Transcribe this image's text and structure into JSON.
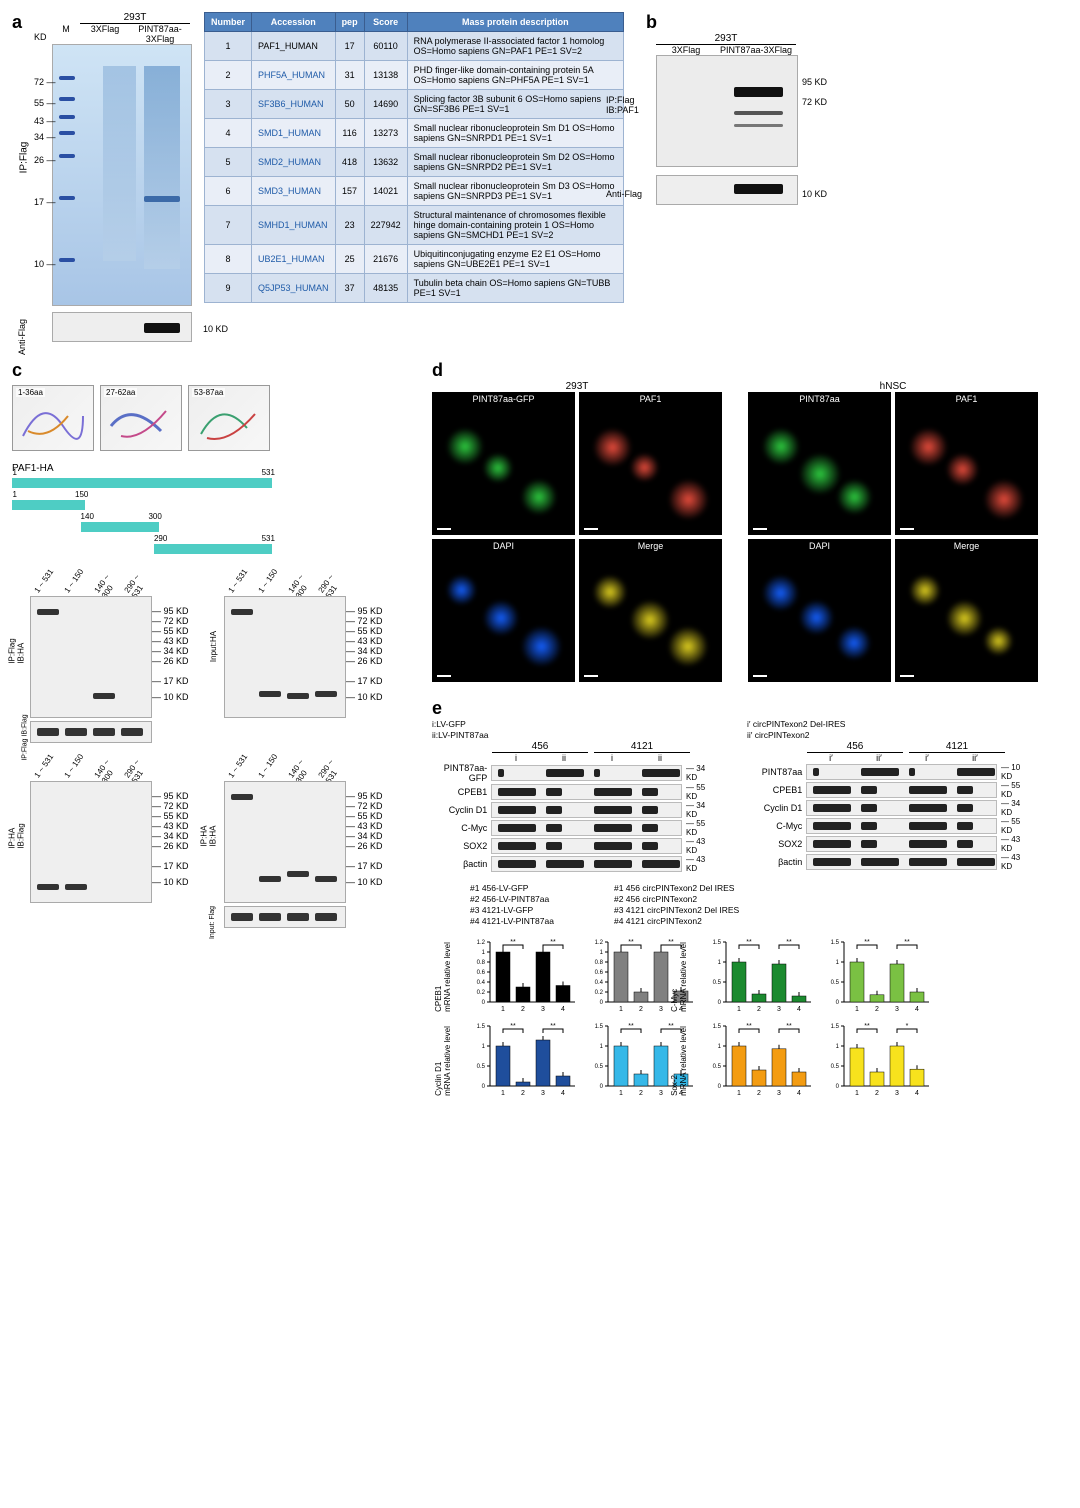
{
  "panel_labels": {
    "a": "a",
    "b": "b",
    "c": "c",
    "d": "d",
    "e": "e"
  },
  "a": {
    "cell_line": "293T",
    "lane_m": "M",
    "lane1": "3XFlag",
    "lane2": "PINT87aa-3XFlag",
    "ip": "IP:Flag",
    "antiflag": "Anti-Flag",
    "kd": "KD",
    "mw": [
      "72",
      "55",
      "43",
      "34",
      "26",
      "17",
      "10"
    ],
    "antiflag_mw": "10 KD",
    "table": {
      "headers": [
        "Number",
        "Accession",
        "pep",
        "Score",
        "Mass protein description"
      ],
      "rows": [
        {
          "n": "1",
          "acc": "PAF1_HUMAN",
          "acc_link": false,
          "pep": "17",
          "score": "60110",
          "desc": "RNA polymerase II-associated factor 1 homolog OS=Homo sapiens GN=PAF1 PE=1 SV=2"
        },
        {
          "n": "2",
          "acc": "PHF5A_HUMAN",
          "acc_link": true,
          "pep": "31",
          "score": "13138",
          "desc": "PHD finger-like domain-containing protein 5A OS=Homo sapiens GN=PHF5A PE=1 SV=1"
        },
        {
          "n": "3",
          "acc": "SF3B6_HUMAN",
          "acc_link": true,
          "pep": "50",
          "score": "14690",
          "desc": "Splicing factor 3B subunit 6 OS=Homo sapiens GN=SF3B6 PE=1 SV=1"
        },
        {
          "n": "4",
          "acc": "SMD1_HUMAN",
          "acc_link": true,
          "pep": "116",
          "score": "13273",
          "desc": "Small nuclear ribonucleoprotein Sm D1 OS=Homo sapiens GN=SNRPD1 PE=1 SV=1"
        },
        {
          "n": "5",
          "acc": "SMD2_HUMAN",
          "acc_link": true,
          "pep": "418",
          "score": "13632",
          "desc": "Small nuclear ribonucleoprotein Sm D2 OS=Homo sapiens GN=SNRPD2 PE=1 SV=1"
        },
        {
          "n": "6",
          "acc": "SMD3_HUMAN",
          "acc_link": true,
          "pep": "157",
          "score": "14021",
          "desc": "Small nuclear ribonucleoprotein Sm D3 OS=Homo sapiens GN=SNRPD3 PE=1 SV=1"
        },
        {
          "n": "7",
          "acc": "SMHD1_HUMAN",
          "acc_link": true,
          "pep": "23",
          "score": "227942",
          "desc": "Structural maintenance of chromosomes flexible hinge domain-containing protein 1 OS=Homo sapiens GN=SMCHD1 PE=1 SV=2"
        },
        {
          "n": "8",
          "acc": "UB2E1_HUMAN",
          "acc_link": true,
          "pep": "25",
          "score": "21676",
          "desc": "Ubiquitinconjugating enzyme E2 E1 OS=Homo sapiens GN=UBE2E1 PE=1 SV=1"
        },
        {
          "n": "9",
          "acc": "Q5JP53_HUMAN",
          "acc_link": true,
          "pep": "37",
          "score": "48135",
          "desc": "Tubulin beta chain OS=Homo sapiens GN=TUBB PE=1 SV=1"
        }
      ]
    }
  },
  "b": {
    "cell_line": "293T",
    "lane1": "3XFlag",
    "lane2": "PINT87aa-3XFlag",
    "ip": "IP:Flag",
    "ib": "IB:PAF1",
    "antiflag": "Anti-Flag",
    "mw_top": [
      "95 KD",
      "72 KD"
    ],
    "mw_bottom": "10 KD"
  },
  "c": {
    "struct_labels": [
      "1-36aa",
      "27-62aa",
      "53-87aa"
    ],
    "paf_label": "PAF1-HA",
    "domains": [
      {
        "start": 1,
        "end": 531,
        "label_l": "1",
        "label_r": "531"
      },
      {
        "start": 1,
        "end": 150,
        "label_l": "1",
        "label_r": "150"
      },
      {
        "start": 140,
        "end": 300,
        "label_l": "140",
        "label_r": "300"
      },
      {
        "start": 290,
        "end": 531,
        "label_l": "290",
        "label_r": "531"
      }
    ],
    "lanes": [
      "1 ~ 531",
      "1 ~ 150",
      "140 ~ 300",
      "290 ~ 531"
    ],
    "mw": [
      "95 KD",
      "72 KD",
      "55 KD",
      "43 KD",
      "34 KD",
      "26 KD",
      "17 KD",
      "10 KD"
    ],
    "panels": [
      {
        "left": "IP:Flag",
        "left2": "IB:HA"
      },
      {
        "left": "Input:HA"
      },
      {
        "left": "IP:Flag",
        "left2": "IB:Flag"
      },
      {
        "left": "IP:HA",
        "left2": "IB:Flag"
      },
      {
        "left": "IP:HA",
        "left2": "IB:HA"
      },
      {
        "left": "Input: Flag"
      }
    ]
  },
  "d": {
    "group1": "293T",
    "group2": "hNSC",
    "labels_293T": [
      "PINT87aa-GFP",
      "PAF1",
      "DAPI",
      "Merge"
    ],
    "labels_hNSC": [
      "PINT87aa",
      "PAF1",
      "DAPI",
      "Merge"
    ],
    "colors": {
      "green": "#2ecc40",
      "red": "#e74c3c",
      "blue": "#1560ff",
      "merge": "#e0d020"
    }
  },
  "e": {
    "left_key_i": "i:LV-GFP",
    "left_key_ii": "ii:LV-PINT87aa",
    "right_key_i": "i′ circPINTexon2 Del-IRES",
    "right_key_ii": "ii′ circPINTexon2",
    "cell1": "456",
    "cell2": "4121",
    "lanes_left": [
      "i",
      "ii",
      "i",
      "ii"
    ],
    "lanes_right": [
      "i′",
      "ii′",
      "i′",
      "ii′"
    ],
    "proteins_left": [
      {
        "name": "PINT87aa-GFP",
        "mw": "34 KD"
      },
      {
        "name": "CPEB1",
        "mw": "55 KD"
      },
      {
        "name": "Cyclin D1",
        "mw": "34 KD"
      },
      {
        "name": "C-Myc",
        "mw": "55 KD"
      },
      {
        "name": "SOX2",
        "mw": "43 KD"
      },
      {
        "name": "βactin",
        "mw": "43 KD"
      }
    ],
    "proteins_right": [
      {
        "name": "PINT87aa",
        "mw": "10 KD"
      },
      {
        "name": "CPEB1",
        "mw": "55 KD"
      },
      {
        "name": "Cyclin D1",
        "mw": "34 KD"
      },
      {
        "name": "C-Myc",
        "mw": "55 KD"
      },
      {
        "name": "SOX2",
        "mw": "43 KD"
      },
      {
        "name": "βactin",
        "mw": "43 KD"
      }
    ],
    "sample_keys_left": [
      "#1 456-LV-GFP",
      "#2 456-LV-PINT87aa",
      "#3 4121-LV-GFP",
      "#4 4121-LV-PINT87aa"
    ],
    "sample_keys_right": [
      "#1 456 circPINTexon2 Del IRES",
      "#2 456 circPINTexon2",
      "#3 4121 circPINTexon2 Del IRES",
      "#4 4121 circPINTexon2"
    ],
    "charts": [
      {
        "title": "CPEB1\nmRNA relative level",
        "color": "#000000",
        "ylim": 1.2,
        "ticks": [
          "0",
          "0.2",
          "0.4",
          "0.6",
          "0.8",
          "1",
          "1.2"
        ],
        "vals": [
          1.0,
          0.3,
          1.0,
          0.33
        ],
        "sig": [
          "**",
          "**"
        ]
      },
      {
        "title": "",
        "color": "#808080",
        "ylim": 1.2,
        "ticks": [
          "0",
          "0.2",
          "0.4",
          "0.6",
          "0.8",
          "1",
          "1.2"
        ],
        "vals": [
          1.0,
          0.2,
          1.0,
          0.22
        ],
        "sig": [
          "**",
          "**"
        ]
      },
      {
        "title": "C-Myc\nmRNA relative level",
        "color": "#1b8a2f",
        "ylim": 1.5,
        "ticks": [
          "0",
          "0.5",
          "1",
          "1.5"
        ],
        "vals": [
          1.0,
          0.2,
          0.95,
          0.15
        ],
        "sig": [
          "**",
          "**"
        ]
      },
      {
        "title": "",
        "color": "#7ac143",
        "ylim": 1.5,
        "ticks": [
          "0",
          "0.5",
          "1",
          "1.5"
        ],
        "vals": [
          1.0,
          0.18,
          0.95,
          0.25
        ],
        "sig": [
          "**",
          "**"
        ]
      },
      {
        "title": "Cyclin D1\nmRNA relative level",
        "color": "#1f4e9c",
        "ylim": 1.5,
        "ticks": [
          "0",
          "0.5",
          "1",
          "1.5"
        ],
        "vals": [
          1.0,
          0.1,
          1.15,
          0.25
        ],
        "sig": [
          "**",
          "**"
        ]
      },
      {
        "title": "",
        "color": "#36b8e8",
        "ylim": 1.5,
        "ticks": [
          "0",
          "0.5",
          "1",
          "1.5"
        ],
        "vals": [
          1.0,
          0.3,
          1.0,
          0.3
        ],
        "sig": [
          "**",
          "**"
        ]
      },
      {
        "title": "Sox-2\nmRNA relative level",
        "color": "#f39c12",
        "ylim": 1.5,
        "ticks": [
          "0",
          "0.5",
          "1",
          "1.5"
        ],
        "vals": [
          1.0,
          0.4,
          0.93,
          0.35
        ],
        "sig": [
          "**",
          "**"
        ]
      },
      {
        "title": "",
        "color": "#f7e21d",
        "ylim": 1.5,
        "ticks": [
          "0",
          "0.5",
          "1",
          "1.5"
        ],
        "vals": [
          0.95,
          0.35,
          1.0,
          0.42
        ],
        "sig": [
          "**",
          "*"
        ]
      }
    ],
    "xlabels": [
      "1",
      "2",
      "3",
      "4"
    ]
  }
}
